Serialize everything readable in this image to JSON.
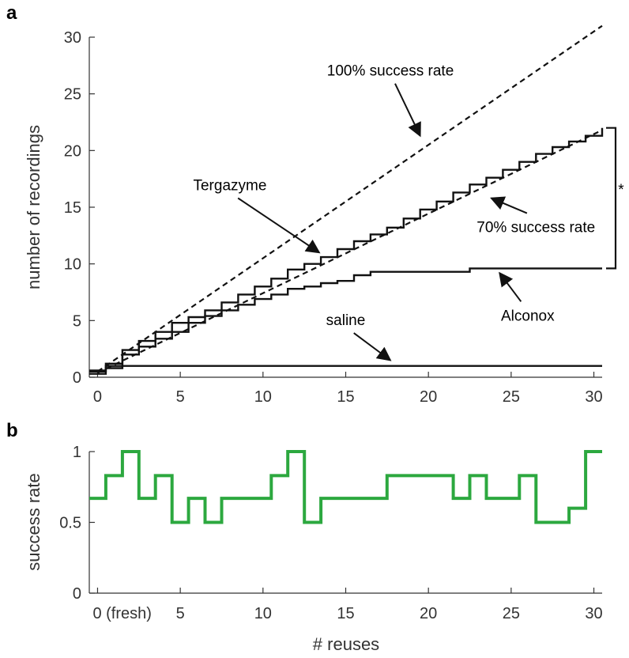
{
  "chart_data": [
    {
      "panel": "a",
      "type": "line",
      "ylabel": "number of recordings",
      "xlabel": "",
      "xlim": [
        -0.5,
        30.5
      ],
      "ylim": [
        0,
        30
      ],
      "xticks": [
        0,
        5,
        10,
        15,
        20,
        25,
        30
      ],
      "yticks": [
        0,
        5,
        10,
        15,
        20,
        25,
        30
      ],
      "grid": false,
      "series": [
        {
          "name": "100% success rate",
          "style": "dashed",
          "x": [
            0,
            30.5
          ],
          "y": [
            0.5,
            31
          ]
        },
        {
          "name": "70% success rate",
          "style": "dashed",
          "x": [
            0,
            30.5
          ],
          "y": [
            0.4,
            21.8
          ]
        },
        {
          "name": "Tergazyme",
          "style": "step",
          "x": [
            -0.5,
            0.5,
            1.5,
            2.5,
            3.5,
            4.5,
            5.5,
            6.5,
            7.5,
            8.5,
            9.5,
            10.5,
            11.5,
            12.5,
            13.5,
            14.5,
            15.5,
            16.5,
            17.5,
            18.5,
            19.5,
            20.5,
            21.5,
            22.5,
            23.5,
            24.5,
            25.5,
            26.5,
            27.5,
            28.5,
            29.5,
            30.5
          ],
          "y": [
            0.3,
            1.2,
            2.4,
            3.2,
            4.0,
            4.8,
            5.3,
            5.9,
            6.6,
            7.3,
            8.0,
            8.7,
            9.5,
            10.0,
            10.6,
            11.3,
            12.0,
            12.6,
            13.2,
            14.0,
            14.8,
            15.5,
            16.3,
            17.0,
            17.6,
            18.3,
            19.0,
            19.7,
            20.3,
            20.8,
            21.3,
            22.0
          ]
        },
        {
          "name": "Alconox",
          "style": "step",
          "x": [
            -0.5,
            0.5,
            1.5,
            2.5,
            3.5,
            4.5,
            5.5,
            6.5,
            7.5,
            8.5,
            9.5,
            10.5,
            11.5,
            12.5,
            13.5,
            14.5,
            15.5,
            16.5,
            17.5,
            22.5,
            30.5
          ],
          "y": [
            0.5,
            0.8,
            2.0,
            2.7,
            3.4,
            4.0,
            4.8,
            5.4,
            5.9,
            6.4,
            6.9,
            7.3,
            7.8,
            8.0,
            8.3,
            8.5,
            9.0,
            9.3,
            9.3,
            9.6,
            9.6
          ]
        },
        {
          "name": "saline",
          "style": "step",
          "x": [
            -0.5,
            0.5,
            30.5
          ],
          "y": [
            0.6,
            1.0,
            1.0
          ]
        }
      ],
      "annotations": [
        {
          "text": "100% success rate",
          "x": 17.7,
          "y": 26.6,
          "arrow_to": [
            19.5,
            21.3
          ],
          "anchor": "middle"
        },
        {
          "text": "Tergazyme",
          "x": 8.0,
          "y": 16.5,
          "arrow_to": [
            13.4,
            11.0
          ],
          "anchor": "middle"
        },
        {
          "text": "70% success rate",
          "x": 26.5,
          "y": 12.8,
          "arrow_to": [
            23.8,
            15.8
          ],
          "anchor": "middle"
        },
        {
          "text": "Alconox",
          "x": 26.0,
          "y": 5.0,
          "arrow_to": [
            24.3,
            9.2
          ],
          "anchor": "middle"
        },
        {
          "text": "saline",
          "x": 15.0,
          "y": 4.6,
          "arrow_to": [
            17.7,
            1.5
          ],
          "anchor": "middle"
        }
      ],
      "significance": "*"
    },
    {
      "panel": "b",
      "type": "line",
      "ylabel": "success rate",
      "xlabel": "# reuses",
      "xlim": [
        -0.5,
        30.5
      ],
      "ylim": [
        0,
        1
      ],
      "xtick_labels": [
        "0 (fresh)",
        "5",
        "10",
        "15",
        "20",
        "25",
        "30"
      ],
      "xticks": [
        0,
        5,
        10,
        15,
        20,
        25,
        30
      ],
      "ytick_labels": [
        "0",
        "0.5",
        "1"
      ],
      "yticks": [
        0,
        0.5,
        1
      ],
      "grid": false,
      "color": "#2ca83f",
      "series": [
        {
          "style": "step",
          "x": [
            -0.5,
            0.5,
            1.5,
            2.5,
            3.5,
            4.5,
            5.5,
            6.5,
            7.5,
            8.5,
            9.5,
            10.5,
            11.5,
            12.5,
            13.5,
            14.5,
            15.5,
            16.5,
            17.5,
            18.5,
            19.5,
            20.5,
            21.5,
            22.5,
            23.5,
            24.5,
            25.5,
            26.5,
            27.5,
            28.5,
            29.5,
            30.5
          ],
          "y": [
            0.67,
            0.83,
            1.0,
            0.67,
            0.83,
            0.5,
            0.67,
            0.5,
            0.67,
            0.67,
            0.67,
            0.83,
            1.0,
            0.5,
            0.67,
            0.67,
            0.67,
            0.67,
            0.83,
            0.83,
            0.83,
            0.83,
            0.67,
            0.83,
            0.67,
            0.67,
            0.83,
            0.5,
            0.5,
            0.6,
            1.0,
            1.0
          ]
        }
      ]
    }
  ]
}
